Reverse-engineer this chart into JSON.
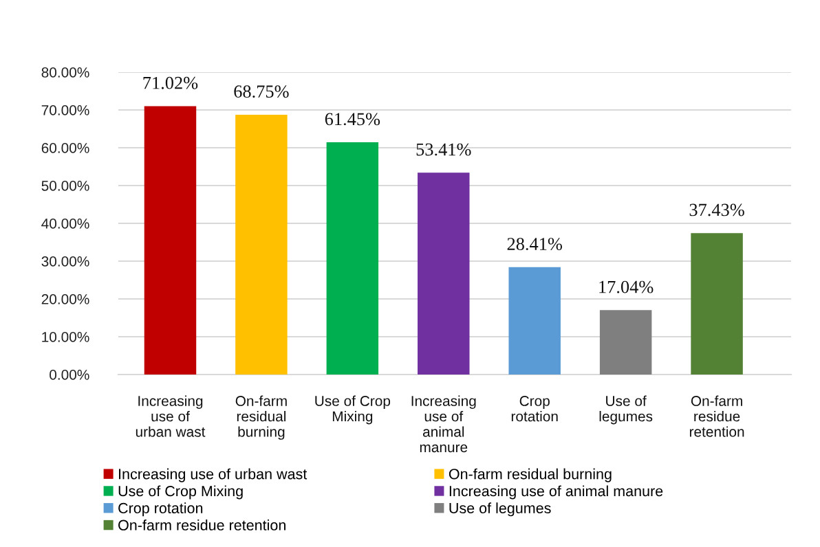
{
  "chart_data": {
    "type": "bar",
    "stacked": true,
    "categories": [
      "Increasing use of urban wast",
      "On-farm residual burning",
      "Use of Crop Mixing",
      "Increasing use of animal manure",
      "Crop rotation",
      "Use of legumes",
      "On-farm residue retention"
    ],
    "series": [
      {
        "name": "Increasing use of urban wast",
        "color": "#c00000",
        "values": [
          71.02,
          null,
          null,
          null,
          null,
          null,
          null
        ],
        "value_labels": [
          "71.02%",
          null,
          null,
          null,
          null,
          null,
          null
        ]
      },
      {
        "name": "On-farm residual burning",
        "color": "#ffc000",
        "values": [
          null,
          68.75,
          null,
          null,
          null,
          null,
          null
        ],
        "value_labels": [
          null,
          "68.75%",
          null,
          null,
          null,
          null,
          null
        ]
      },
      {
        "name": "Use of Crop Mixing",
        "color": "#00b050",
        "values": [
          null,
          null,
          61.45,
          null,
          null,
          null,
          null
        ],
        "value_labels": [
          null,
          null,
          "61.45%",
          null,
          null,
          null,
          null
        ]
      },
      {
        "name": "Increasing use of animal manure",
        "color": "#7030a0",
        "values": [
          null,
          null,
          null,
          53.41,
          null,
          null,
          null
        ],
        "value_labels": [
          null,
          null,
          null,
          "53.41%",
          null,
          null,
          null
        ]
      },
      {
        "name": "Crop rotation",
        "color": "#5b9bd5",
        "values": [
          null,
          null,
          null,
          null,
          28.41,
          null,
          null
        ],
        "value_labels": [
          null,
          null,
          null,
          null,
          "28.41%",
          null,
          null
        ]
      },
      {
        "name": "Use of legumes",
        "color": "#7f7f7f",
        "values": [
          null,
          null,
          null,
          null,
          null,
          17.04,
          null
        ],
        "value_labels": [
          null,
          null,
          null,
          null,
          null,
          "17.04%",
          null
        ]
      },
      {
        "name": "On-farm residue retention",
        "color": "#548235",
        "values": [
          null,
          null,
          null,
          null,
          null,
          null,
          37.43
        ],
        "value_labels": [
          null,
          null,
          null,
          null,
          null,
          null,
          "37.43%"
        ]
      }
    ],
    "ylim": [
      0,
      80
    ],
    "yticks": [
      {
        "value": 0,
        "label": "0.00%"
      },
      {
        "value": 10,
        "label": "10.00%"
      },
      {
        "value": 20,
        "label": "20.00%"
      },
      {
        "value": 30,
        "label": "30.00%"
      },
      {
        "value": 40,
        "label": "40.00%"
      },
      {
        "value": 50,
        "label": "50.00%"
      },
      {
        "value": 60,
        "label": "60.00%"
      },
      {
        "value": 70,
        "label": "70.00%"
      },
      {
        "value": 80,
        "label": "80.00%"
      }
    ],
    "grid": "y",
    "legend": "bottom"
  }
}
